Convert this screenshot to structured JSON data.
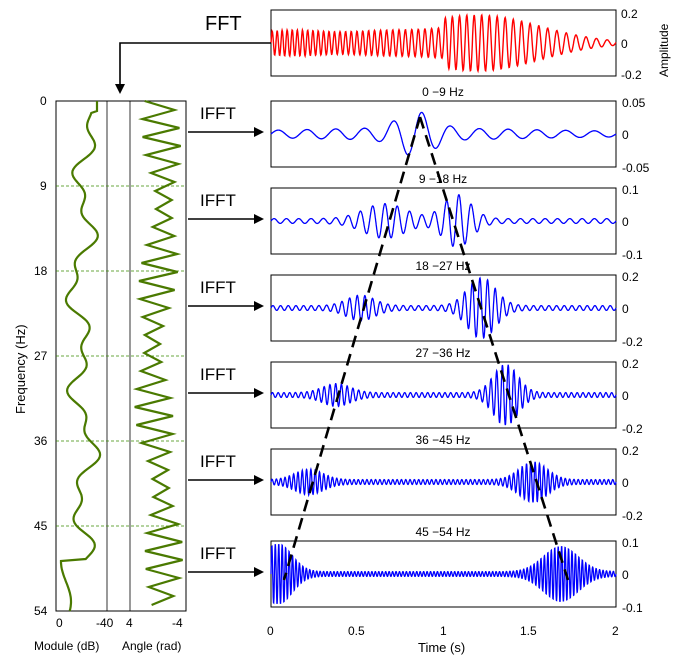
{
  "fft_label": "FFT",
  "ifft_label": "IFFT",
  "top_panel": {
    "ylabel": "Amplitude",
    "yticks": [
      "0.2",
      "0",
      "-0.2"
    ],
    "color": "#ff0000"
  },
  "left_panel": {
    "ylabel": "Frequency (Hz)",
    "freq_ticks": [
      "0",
      "9",
      "18",
      "27",
      "36",
      "45",
      "54"
    ],
    "module_ticks": [
      "0",
      "-40"
    ],
    "angle_ticks": [
      "4",
      "-4"
    ],
    "module_label": "Module (dB)",
    "angle_label": "Angle (rad)",
    "color": "#4a7a00"
  },
  "bands": [
    {
      "title": "0 −9 Hz",
      "yticks": [
        "0.05",
        "0",
        "-0.05"
      ]
    },
    {
      "title": "9 −18 Hz",
      "yticks": [
        "0.1",
        "0",
        "-0.1"
      ]
    },
    {
      "title": "18 −27 Hz",
      "yticks": [
        "0.2",
        "0",
        "-0.2"
      ]
    },
    {
      "title": "27 −36 Hz",
      "yticks": [
        "0.2",
        "0",
        "-0.2"
      ]
    },
    {
      "title": "36 −45 Hz",
      "yticks": [
        "0.2",
        "0",
        "-0.2"
      ]
    },
    {
      "title": "45 −54 Hz",
      "yticks": [
        "0.1",
        "0",
        "-0.1"
      ]
    }
  ],
  "band_color": "#0000ff",
  "xaxis": {
    "ticks": [
      "0",
      "0.5",
      "1",
      "1.5",
      "2"
    ],
    "label": "Time (s)"
  }
}
